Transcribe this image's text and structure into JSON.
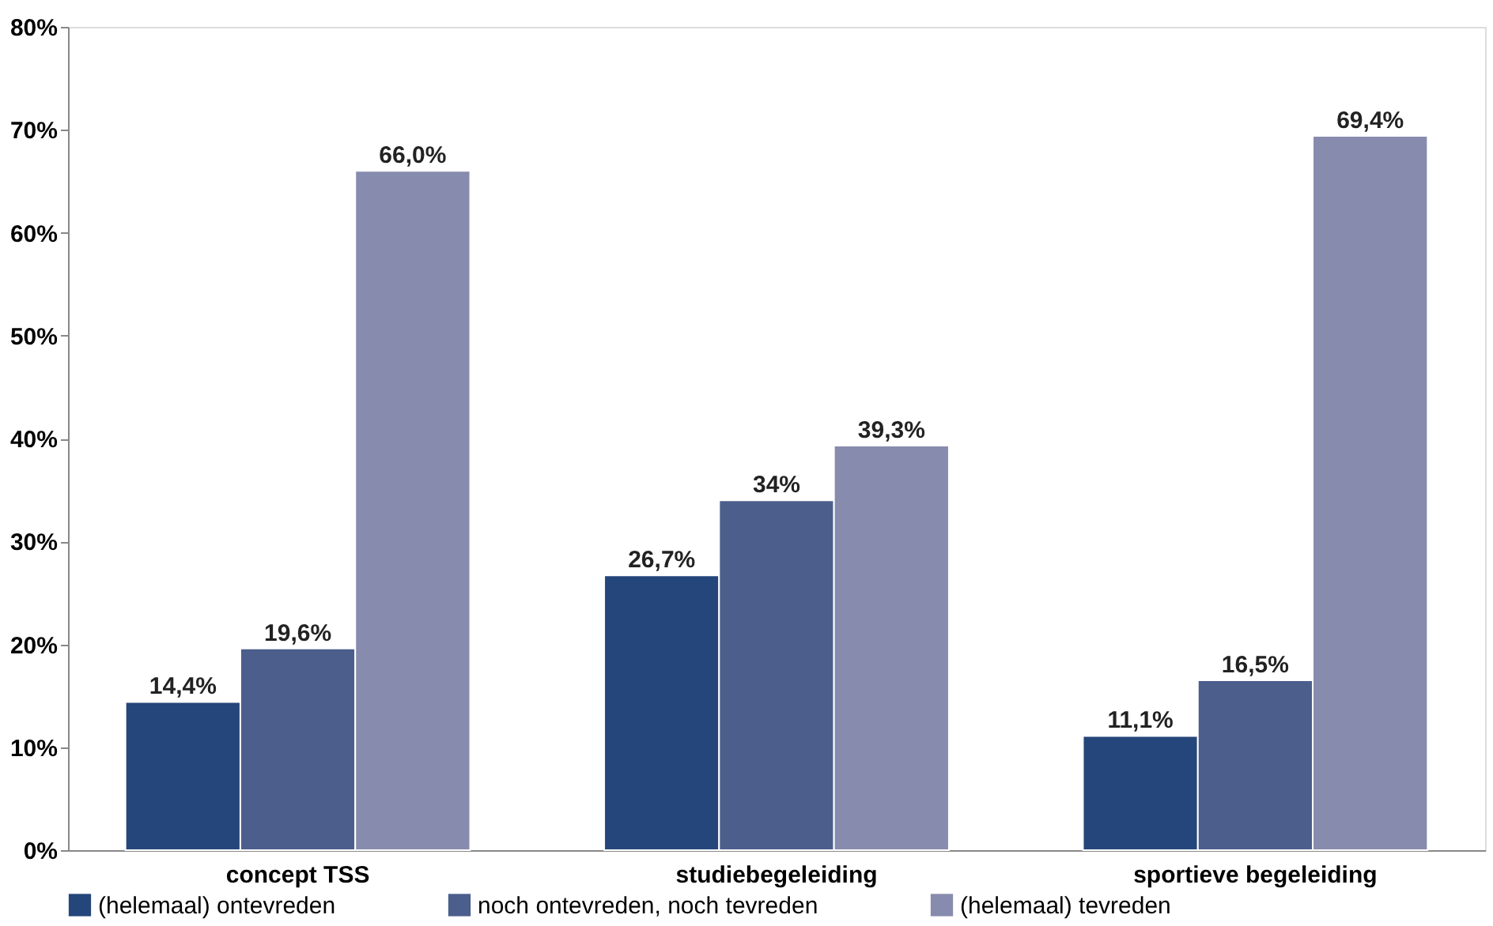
{
  "chart_data": {
    "type": "bar",
    "categories": [
      "concept TSS",
      "studiebegeleiding",
      "sportieve begeleiding"
    ],
    "series": [
      {
        "name": "(helemaal) ontevreden",
        "color": "#24467a",
        "values": [
          14.4,
          26.7,
          11.1
        ],
        "value_labels": [
          "14,4%",
          "26,7%",
          "11,1%"
        ]
      },
      {
        "name": "noch ontevreden, noch tevreden",
        "color": "#4b5e8c",
        "values": [
          19.6,
          34,
          16.5
        ],
        "value_labels": [
          "19,6%",
          "34%",
          "16,5%"
        ]
      },
      {
        "name": "(helemaal) tevreden",
        "color": "#878bad",
        "values": [
          66.0,
          39.3,
          69.4
        ],
        "value_labels": [
          "66,0%",
          "39,3%",
          "69,4%"
        ]
      }
    ],
    "ylim": [
      0,
      80
    ],
    "yticks": [
      {
        "value": 0,
        "label": "0%"
      },
      {
        "value": 10,
        "label": "10%"
      },
      {
        "value": 20,
        "label": "20%"
      },
      {
        "value": 30,
        "label": "30%"
      },
      {
        "value": 40,
        "label": "40%"
      },
      {
        "value": 50,
        "label": "50%"
      },
      {
        "value": 60,
        "label": "60%"
      },
      {
        "value": 70,
        "label": "70%"
      },
      {
        "value": 80,
        "label": "80%"
      }
    ],
    "grid": false,
    "legend": "bottom"
  }
}
